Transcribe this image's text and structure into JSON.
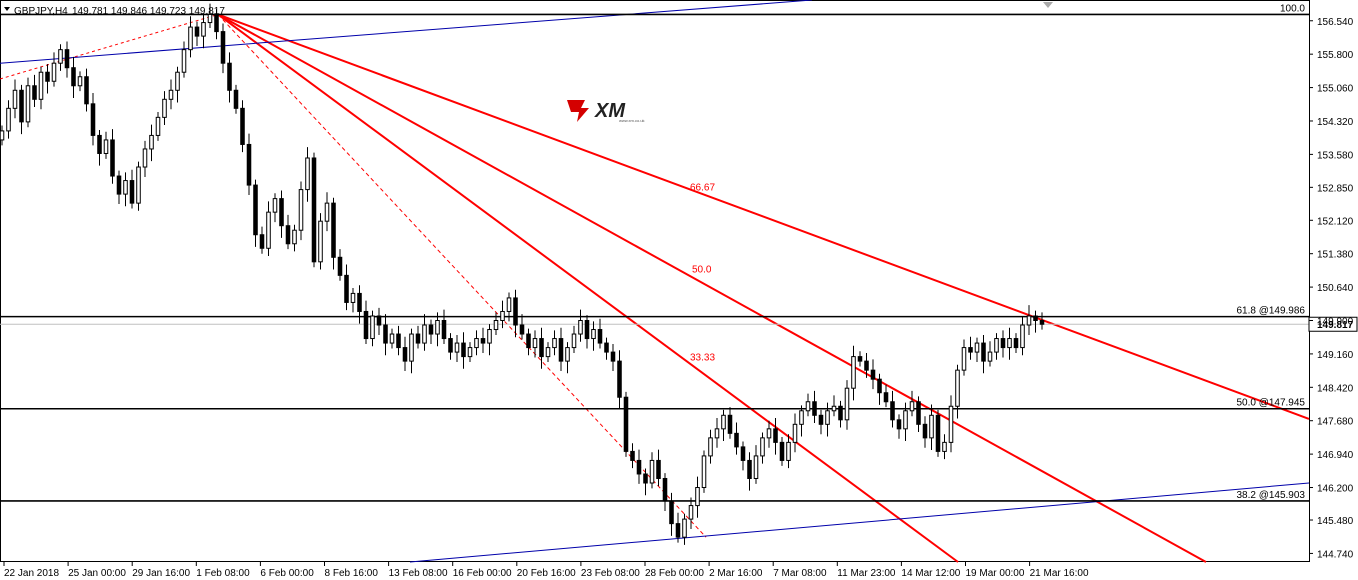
{
  "header": {
    "symbol": "GBPJPY,H4",
    "ohlc": "149.781 149.846 149.723 149.817"
  },
  "logo": {
    "text": "XM",
    "subtext": "www.xm.co.uk"
  },
  "colors": {
    "background": "#ffffff",
    "candle": "#000000",
    "fan": "#ff0000",
    "trendline": "#0000aa",
    "fib": "#000000"
  },
  "chart_data": {
    "type": "candlestick",
    "instrument": "GBPJPY",
    "timeframe": "H4",
    "y_axis": {
      "ylim": [
        144.55,
        157.0
      ],
      "ticks": [
        "156.540",
        "155.800",
        "155.060",
        "154.320",
        "153.580",
        "152.850",
        "152.120",
        "151.380",
        "150.640",
        "149.900",
        "149.160",
        "148.420",
        "147.680",
        "146.940",
        "146.200",
        "145.480",
        "144.740"
      ]
    },
    "x_axis": {
      "ticks": [
        "22 Jan 2018",
        "25 Jan 00:00",
        "29 Jan 16:00",
        "1 Feb 08:00",
        "6 Feb 00:00",
        "8 Feb 16:00",
        "13 Feb 08:00",
        "16 Feb 00:00",
        "20 Feb 16:00",
        "23 Feb 08:00",
        "28 Feb 00:00",
        "2 Mar 16:00",
        "7 Mar 08:00",
        "11 Mar 23:00",
        "14 Mar 12:00",
        "19 Mar 00:00",
        "21 Mar 16:00"
      ]
    },
    "current_price": "149.817",
    "fib_levels": [
      {
        "label": "100.0",
        "price": 156.68
      },
      {
        "label": "61.8  @149.986",
        "price": 149.986
      },
      {
        "label": "50.0  @147.945",
        "price": 147.945
      },
      {
        "label": "38.2  @145.903",
        "price": 145.903
      }
    ],
    "fan_lines": [
      {
        "label": "66.67"
      },
      {
        "label": "50.0"
      },
      {
        "label": "33.33"
      }
    ],
    "closes": [
      154.1,
      154.6,
      155.0,
      154.3,
      155.1,
      154.8,
      155.4,
      155.2,
      155.6,
      155.9,
      155.5,
      155.1,
      155.3,
      154.7,
      154.0,
      153.6,
      153.9,
      153.1,
      152.7,
      153.0,
      152.5,
      153.3,
      153.7,
      154.0,
      154.4,
      154.8,
      155.0,
      155.4,
      155.9,
      156.4,
      156.2,
      156.5,
      156.68,
      156.3,
      155.6,
      155.0,
      154.6,
      153.8,
      152.9,
      151.8,
      151.5,
      152.3,
      152.6,
      152.0,
      151.6,
      151.9,
      152.8,
      153.5,
      151.2,
      152.1,
      152.5,
      151.3,
      150.9,
      150.3,
      150.5,
      150.1,
      149.5,
      150.0,
      149.8,
      149.4,
      149.6,
      149.3,
      149.0,
      149.6,
      149.4,
      149.8,
      149.6,
      149.9,
      149.5,
      149.2,
      149.4,
      149.1,
      149.3,
      149.5,
      149.4,
      149.7,
      149.9,
      150.1,
      150.4,
      149.8,
      149.6,
      149.3,
      149.5,
      149.1,
      149.3,
      149.5,
      149.0,
      149.3,
      149.6,
      149.9,
      149.5,
      149.7,
      149.4,
      149.2,
      149.0,
      148.2,
      147.0,
      146.8,
      146.5,
      146.3,
      146.8,
      146.4,
      145.9,
      145.4,
      145.1,
      145.5,
      145.8,
      146.2,
      146.9,
      147.3,
      147.5,
      147.8,
      147.4,
      147.1,
      146.8,
      146.4,
      146.9,
      147.3,
      147.5,
      147.2,
      146.8,
      147.2,
      147.6,
      147.9,
      148.1,
      147.8,
      147.6,
      147.9,
      148.0,
      147.7,
      148.4,
      149.1,
      149.0,
      148.8,
      148.6,
      148.3,
      148.1,
      147.7,
      147.5,
      147.9,
      148.1,
      147.6,
      147.3,
      147.8,
      147.0,
      147.2,
      148.0,
      148.8,
      149.3,
      149.2,
      149.4,
      149.0,
      149.2,
      149.5,
      149.3,
      149.5,
      149.3,
      149.8,
      150.0,
      149.9,
      149.817
    ]
  }
}
